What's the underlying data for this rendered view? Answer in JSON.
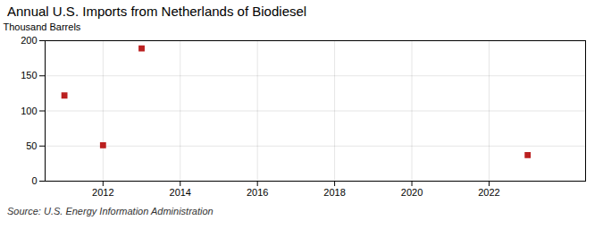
{
  "chart_data": {
    "type": "scatter",
    "title": "Annual U.S. Imports from Netherlands of Biodiesel",
    "ylabel": "Thousand Barrels",
    "annotation": "Source: U.S. Energy Information Administration",
    "x": [
      2011,
      2012,
      2013,
      2023
    ],
    "values": [
      122,
      51,
      189,
      37
    ],
    "color": "#bb2020",
    "marker": "square",
    "xlim": [
      2010.5,
      2024.5
    ],
    "ylim": [
      0,
      200
    ],
    "xticks": [
      2012,
      2014,
      2016,
      2018,
      2020,
      2022
    ],
    "yticks": [
      0,
      50,
      100,
      150,
      200
    ],
    "grid": true
  }
}
